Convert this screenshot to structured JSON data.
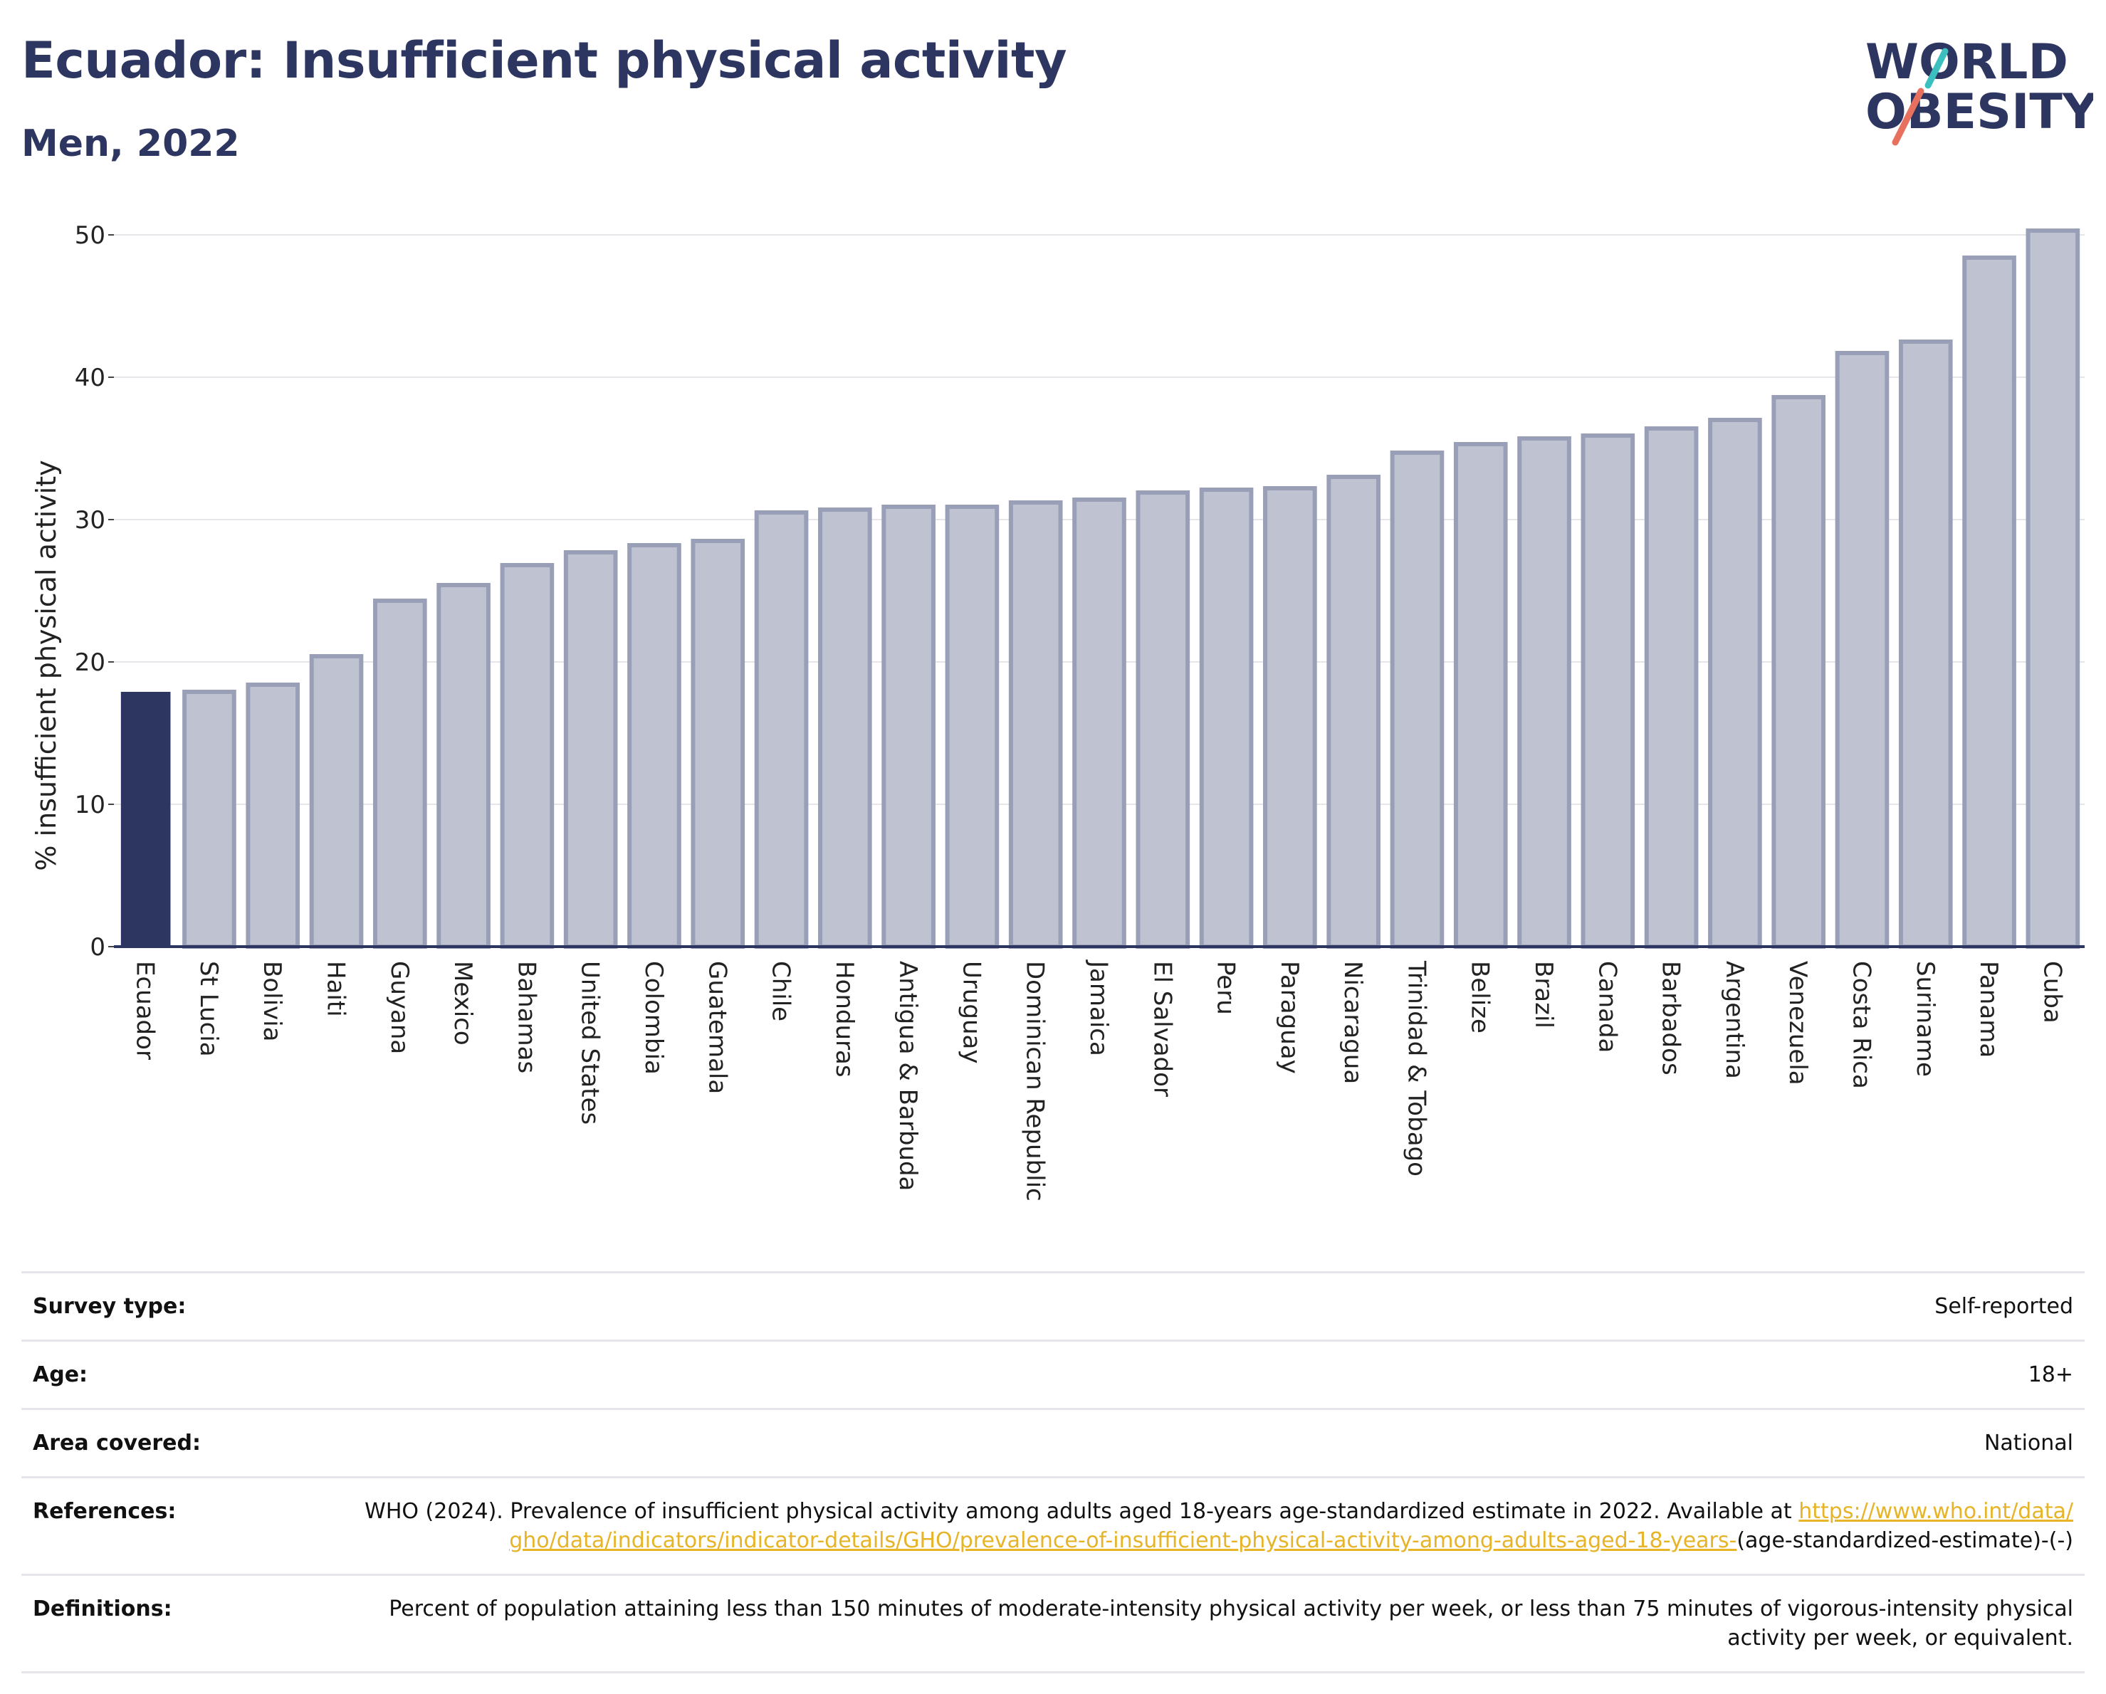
{
  "header": {
    "title": "Ecuador: Insufficient physical activity",
    "subtitle": "Men, 2022"
  },
  "logo": {
    "line1": "WORLD",
    "line2": "OBESITY",
    "slash_colors": [
      "#3bbfbf",
      "#e8705e"
    ]
  },
  "colors": {
    "highlight": "#2d3561",
    "bar_fill": "#bfc2d0",
    "bar_stroke": "#9a9fb8",
    "grid": "#e6e6ea",
    "axis": "#2d3561"
  },
  "chart_data": {
    "type": "bar",
    "title": "Ecuador: Insufficient physical activity",
    "subtitle": "Men, 2022",
    "xlabel": "",
    "ylabel": "% insufficient physical activity",
    "ylim": [
      0,
      50.5
    ],
    "yticks": [
      0,
      10,
      20,
      30,
      40,
      50
    ],
    "grid": true,
    "highlight": "Ecuador",
    "categories": [
      "Ecuador",
      "St Lucia",
      "Bolivia",
      "Haiti",
      "Guyana",
      "Mexico",
      "Bahamas",
      "United States",
      "Colombia",
      "Guatemala",
      "Chile",
      "Honduras",
      "Antigua & Barbuda",
      "Uruguay",
      "Dominican Republic",
      "Jamaica",
      "El Salvador",
      "Peru",
      "Paraguay",
      "Nicaragua",
      "Trinidad & Tobago",
      "Belize",
      "Brazil",
      "Canada",
      "Barbados",
      "Argentina",
      "Venezuela",
      "Costa Rica",
      "Suriname",
      "Panama",
      "Cuba"
    ],
    "values": [
      17.9,
      17.9,
      18.4,
      20.4,
      24.3,
      25.4,
      26.8,
      27.7,
      28.2,
      28.5,
      30.5,
      30.7,
      30.9,
      30.9,
      31.2,
      31.4,
      31.9,
      32.1,
      32.2,
      33.0,
      34.7,
      35.3,
      35.7,
      35.9,
      36.4,
      37.0,
      38.6,
      41.7,
      42.5,
      48.4,
      50.3
    ]
  },
  "info": {
    "survey_type_label": "Survey type:",
    "survey_type_value": "Self-reported",
    "age_label": "Age:",
    "age_value": "18+",
    "area_label": "Area covered:",
    "area_value": "National",
    "references_label": "References:",
    "references_text": "WHO (2024). Prevalence of insufficient physical activity among adults aged 18-years age-standardized estimate in 2022. Available at",
    "references_link": "https://www.who.int/data/gho/data/indicators/indicator-details/GHO/prevalence-of-insufficient-physical-activity-among-adults-aged-18-years-",
    "references_suffix": "(age-standardized-estimate)-(-)",
    "definitions_label": "Definitions:",
    "definitions_value": "Percent of population attaining less than 150 minutes of moderate-intensity physical activity per week, or less than 75 minutes of vigorous-intensity physical activity per week, or equivalent."
  }
}
